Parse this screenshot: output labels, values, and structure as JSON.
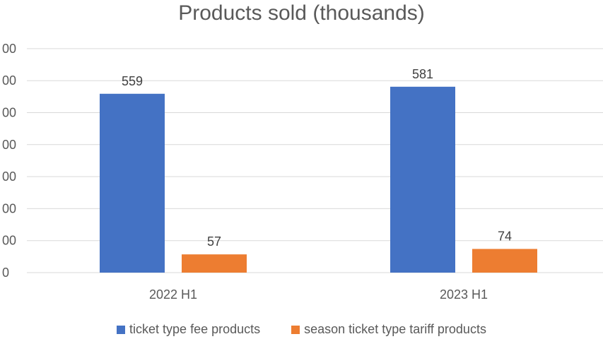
{
  "chart_data": {
    "type": "bar",
    "title": "Products sold (thousands)",
    "categories": [
      "2022 H1",
      "2023 H1"
    ],
    "series": [
      {
        "name": "ticket type fee products",
        "values": [
          559,
          581
        ],
        "color": "#4472C4"
      },
      {
        "name": "season ticket type tariff products",
        "values": [
          57,
          74
        ],
        "color": "#ED7D31"
      }
    ],
    "y_tick_labels": [
      "0",
      "00",
      "00",
      "00",
      "00",
      "00",
      "00",
      "00"
    ],
    "ylim": [
      0,
      700
    ],
    "grid": true,
    "legend_position": "bottom",
    "xlabel": "",
    "ylabel": ""
  }
}
